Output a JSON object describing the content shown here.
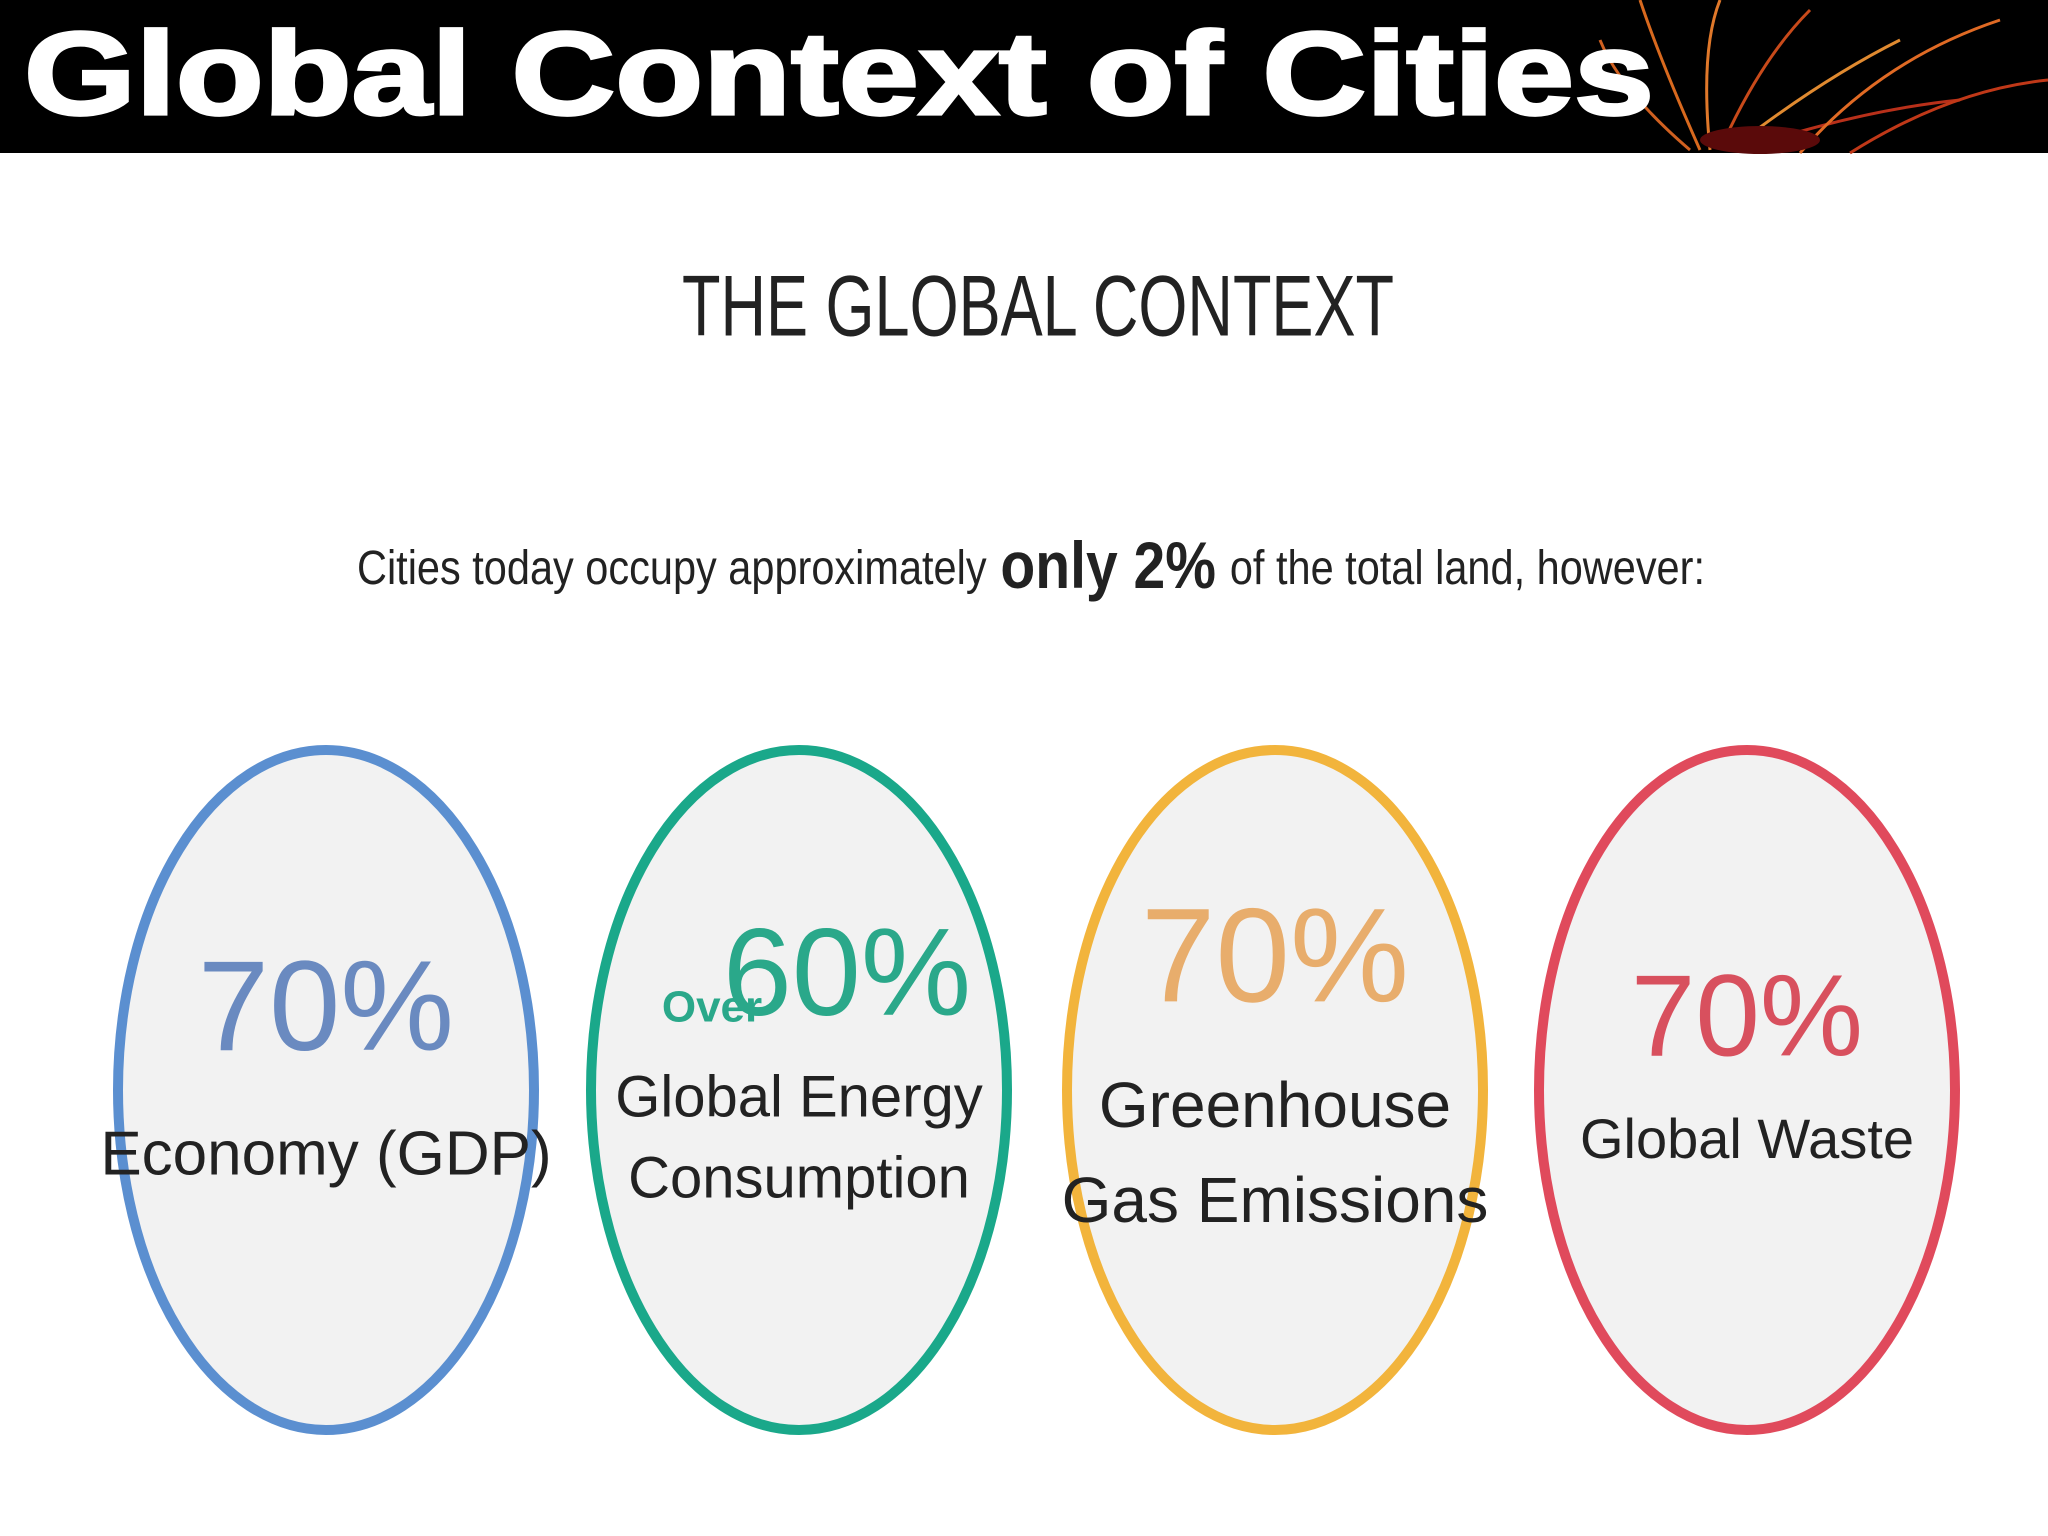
{
  "header": {
    "title": "Global Context of Cities"
  },
  "heading": "THE GLOBAL CONTEXT",
  "intro": {
    "before": "Cities today occupy approximately",
    "emphasis": "only 2%",
    "after": "of the total land, however:"
  },
  "circles": [
    {
      "value": "70%",
      "label_lines": [
        "Economy (GDP)"
      ],
      "color": "#5b8fd0",
      "text_color": "#6a8ac0"
    },
    {
      "prefix": "Over",
      "value": "60%",
      "label_lines": [
        "Global Energy",
        "Consumption"
      ],
      "color": "#1aa88a",
      "text_color": "#2aa88a"
    },
    {
      "value": "70%",
      "label_lines": [
        "Greenhouse",
        "Gas Emissions"
      ],
      "color": "#f2b43c",
      "text_color": "#e8ad6c"
    },
    {
      "value": "70%",
      "label_lines": [
        "Global Waste"
      ],
      "color": "#e04a5c",
      "text_color": "#d8505e"
    }
  ]
}
